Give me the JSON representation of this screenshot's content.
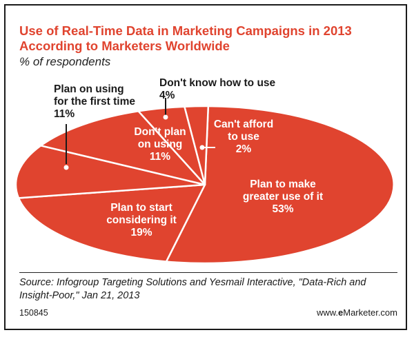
{
  "title": "Use of Real-Time Data in Marketing Campaigns in 2013 According to Marketers Worldwide",
  "subtitle": "% of respondents",
  "footer": {
    "source": "Source: Infogroup Targeting Solutions and Yesmail Interactive, \"Data-Rich and Insight-Poor,\" Jan 21, 2013",
    "chart_id": "150845",
    "brand_prefix": "www.",
    "brand_bold": "e",
    "brand_suffix": "Marketer.com"
  },
  "colors": {
    "slice_fill": "#e0442f",
    "slice_stroke": "#ffffff",
    "title_color": "#e0442f",
    "text_inside": "#ffffff",
    "text_outside": "#1a1a1a"
  },
  "chart_data": {
    "type": "pie",
    "title": "Use of Real-Time Data in Marketing Campaigns in 2013 According to Marketers Worldwide",
    "subtitle": "% of respondents",
    "unit": "%",
    "slices": [
      {
        "label": "Plan to make greater use of it",
        "value": 53,
        "value_label": "53%"
      },
      {
        "label": "Plan to start considering it",
        "value": 19,
        "value_label": "19%"
      },
      {
        "label": "Plan on using for the first time",
        "value": 11,
        "value_label": "11%"
      },
      {
        "label": "Don't plan on using",
        "value": 11,
        "value_label": "11%"
      },
      {
        "label": "Don't know how to use",
        "value": 4,
        "value_label": "4%"
      },
      {
        "label": "Can't afford to use",
        "value": 2,
        "value_label": "2%"
      }
    ]
  }
}
